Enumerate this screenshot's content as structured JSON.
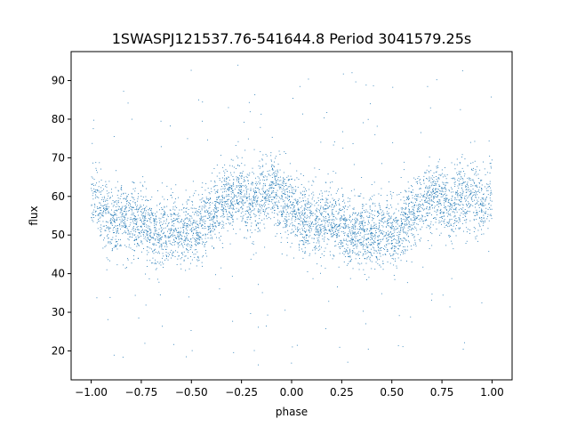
{
  "chart_data": {
    "type": "scatter",
    "title": "1SWASPJ121537.76-541644.8 Period 3041579.25s",
    "xlabel": "phase",
    "ylabel": "flux",
    "xlim": [
      -1.1,
      1.1
    ],
    "ylim": [
      12.5,
      97.5
    ],
    "xticks": [
      -1.0,
      -0.75,
      -0.5,
      -0.25,
      0.0,
      0.25,
      0.5,
      0.75,
      1.0
    ],
    "xtick_labels": [
      "−1.00",
      "−0.75",
      "−0.50",
      "−0.25",
      "0.00",
      "0.25",
      "0.50",
      "0.75",
      "1.00"
    ],
    "yticks": [
      20,
      30,
      40,
      50,
      60,
      70,
      80,
      90
    ],
    "ytick_labels": [
      "20",
      "30",
      "40",
      "50",
      "60",
      "70",
      "80",
      "90"
    ],
    "grid": false,
    "legend": "none",
    "marker_color": "#1f77b4",
    "series": [
      {
        "x": [
          -0.98,
          -0.95,
          -0.92,
          -0.9,
          -0.87,
          -0.85,
          -0.82,
          -0.8,
          -0.78,
          -0.75,
          -0.72,
          -0.7,
          -0.67,
          -0.65,
          -0.62,
          -0.6,
          -0.57,
          -0.55,
          -0.52,
          -0.5,
          -0.47,
          -0.45,
          -0.42,
          -0.4,
          -0.37,
          -0.35,
          -0.32,
          -0.3,
          -0.27,
          -0.25,
          -0.22,
          -0.2,
          -0.17,
          -0.15,
          -0.12,
          -0.1,
          -0.07,
          -0.05,
          -0.02,
          0.0,
          0.02,
          0.05,
          0.07,
          0.1,
          0.12,
          0.15,
          0.17,
          0.2,
          0.22,
          0.25,
          0.27,
          0.3,
          0.32,
          0.35,
          0.37,
          0.4,
          0.42,
          0.45,
          0.47,
          0.5,
          0.52,
          0.55,
          0.57,
          0.6,
          0.62,
          0.65,
          0.67,
          0.7,
          0.72,
          0.75,
          0.77,
          0.8,
          0.82,
          0.85,
          0.87,
          0.9,
          0.92,
          0.95,
          0.97,
          1.0
        ],
        "y": [
          60,
          57,
          55,
          54,
          53,
          56,
          54,
          55,
          52,
          54,
          52,
          51,
          50,
          51,
          50,
          52,
          51,
          50,
          51,
          52,
          51,
          53,
          55,
          56,
          57,
          58,
          60,
          59,
          61,
          60,
          58,
          57,
          59,
          61,
          60,
          62,
          60,
          58,
          57,
          59,
          57,
          54,
          53,
          53,
          52,
          53,
          55,
          54,
          52,
          54,
          51,
          50,
          50,
          52,
          49,
          51,
          50,
          51,
          52,
          51,
          50,
          52,
          53,
          55,
          56,
          57,
          58,
          59,
          61,
          60,
          58,
          57,
          59,
          61,
          59,
          62,
          60,
          58,
          59,
          61
        ]
      }
    ],
    "spread": {
      "core_sigma": 4.5,
      "outlier_range": [
        16,
        94
      ]
    }
  }
}
